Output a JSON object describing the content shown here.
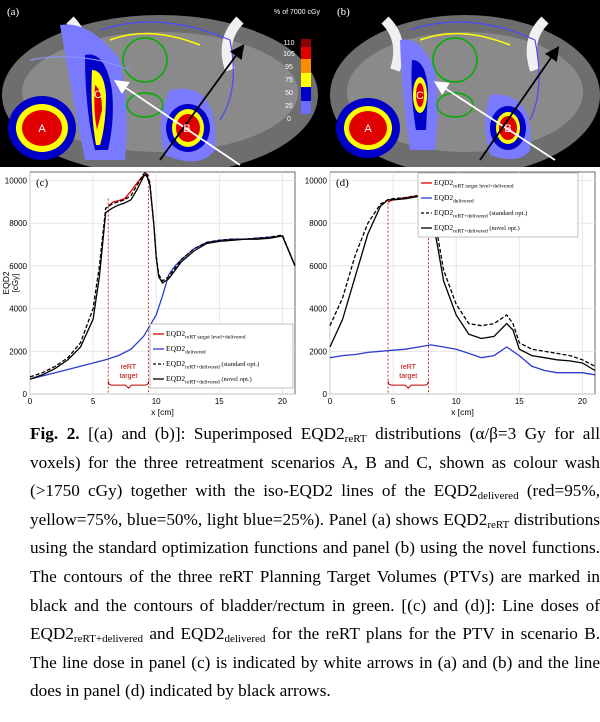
{
  "figure": {
    "ct_a": {
      "panel_label": "(a)",
      "labels": [
        "A",
        "B",
        "C"
      ]
    },
    "ct_b": {
      "panel_label": "(b)",
      "labels": [
        "A",
        "B",
        "C"
      ]
    },
    "colorbar": {
      "title": "% of 7000 cGy",
      "ticks": [
        "110",
        "105",
        "95",
        "75",
        "50",
        "25",
        "0"
      ],
      "colors": [
        "#8b0000",
        "#e00000",
        "#ff8c00",
        "#ffff00",
        "#0000c8",
        "#6b6bff",
        "#a0a0ff"
      ]
    }
  },
  "chart_data": [
    {
      "type": "line",
      "panel_label": "(c)",
      "xlabel": "x [cm]",
      "ylabel": "EQD2",
      "ylabel_unit": "[cGy]",
      "xlim": [
        0,
        21
      ],
      "ylim": [
        0,
        10400
      ],
      "xticks": [
        0,
        5,
        10,
        15,
        20
      ],
      "yticks": [
        0,
        2000,
        4000,
        6000,
        8000,
        10000
      ],
      "target_region": {
        "x_start": 6.2,
        "x_end": 9.4,
        "label_line1": "reRT",
        "label_line2": "target"
      },
      "series": [
        {
          "name_main": "EQD2",
          "name_sub": "reRT target level+delivered",
          "name_tail": "",
          "color": "#e00000",
          "dash": "solid",
          "x": [
            6.2,
            6.6,
            7.0,
            7.5,
            8.0,
            8.5,
            9.0,
            9.4
          ],
          "y": [
            8800,
            9000,
            9050,
            9150,
            9500,
            9900,
            10250,
            10200
          ]
        },
        {
          "name_main": "EQD2",
          "name_sub": "delivered",
          "name_tail": "",
          "color": "#2a3bd1",
          "dash": "solid",
          "x": [
            0,
            1,
            2,
            3,
            4,
            5,
            6,
            7,
            8,
            9,
            10,
            10.5,
            11,
            11.5,
            12,
            13,
            14,
            15,
            16,
            17,
            18,
            19,
            20,
            21
          ],
          "y": [
            700,
            850,
            1000,
            1150,
            1300,
            1450,
            1600,
            1800,
            2100,
            2700,
            3700,
            4600,
            5600,
            6000,
            6300,
            6800,
            7100,
            7200,
            7250,
            7250,
            7300,
            7350,
            7400,
            6000
          ]
        },
        {
          "name_main": "EQD2",
          "name_sub": "reRT+delivered",
          "name_tail": "(standard opt.)",
          "color": "#000000",
          "dash": "dashed",
          "x": [
            0,
            1,
            2,
            3,
            4,
            5,
            5.5,
            6,
            6.5,
            7,
            7.5,
            8,
            8.5,
            9,
            9.2,
            9.5,
            9.8,
            10,
            10.2,
            10.5,
            11,
            11.5,
            12,
            13,
            14,
            15,
            16,
            17,
            18,
            19,
            20,
            21
          ],
          "y": [
            800,
            1000,
            1300,
            1700,
            2400,
            4000,
            6000,
            8700,
            8900,
            9000,
            9100,
            9300,
            9800,
            10300,
            10400,
            9900,
            8000,
            6500,
            5600,
            5300,
            5500,
            5900,
            6300,
            6800,
            7100,
            7200,
            7250,
            7250,
            7300,
            7350,
            7450,
            6000
          ]
        },
        {
          "name_main": "EQD2",
          "name_sub": "reRT+delivered",
          "name_tail": "(novel opt.)",
          "color": "#000000",
          "dash": "solid",
          "x": [
            0,
            1,
            2,
            3,
            4,
            5,
            5.5,
            6,
            6.5,
            7,
            7.5,
            8,
            8.5,
            9,
            9.2,
            9.5,
            9.8,
            10,
            10.2,
            10.5,
            11,
            11.5,
            12,
            13,
            14,
            15,
            16,
            17,
            18,
            19,
            20,
            21
          ],
          "y": [
            700,
            900,
            1200,
            1600,
            2200,
            3500,
            5500,
            8500,
            8700,
            8850,
            8950,
            9100,
            9600,
            10200,
            10300,
            9800,
            8000,
            6400,
            5500,
            5200,
            5400,
            5800,
            6200,
            6700,
            7050,
            7150,
            7200,
            7250,
            7250,
            7300,
            7400,
            6000
          ]
        }
      ]
    },
    {
      "type": "line",
      "panel_label": "(d)",
      "xlabel": "x [cm]",
      "ylabel": "",
      "xlim": [
        0,
        21
      ],
      "ylim": [
        0,
        10400
      ],
      "xticks": [
        0,
        5,
        10,
        15,
        20
      ],
      "yticks": [
        0,
        2000,
        4000,
        6000,
        8000,
        10000
      ],
      "target_region": {
        "x_start": 4.6,
        "x_end": 7.8,
        "label_line1": "reRT",
        "label_line2": "target"
      },
      "series": [
        {
          "name_main": "EQD2",
          "name_sub": "reRT target level+delivered",
          "name_tail": "",
          "color": "#e00000",
          "dash": "solid",
          "x": [
            4.6,
            5.0,
            5.5,
            6.0,
            6.5,
            7.0,
            7.5,
            7.8
          ],
          "y": [
            9000,
            9100,
            9150,
            9200,
            9250,
            9300,
            9250,
            9150
          ]
        },
        {
          "name_main": "EQD2",
          "name_sub": "delivered",
          "name_tail": "",
          "color": "#2a3bd1",
          "dash": "solid",
          "x": [
            0,
            1,
            2,
            3,
            4,
            5,
            6,
            7,
            8,
            9,
            10,
            11,
            12,
            13,
            14,
            15,
            16,
            17,
            18,
            19,
            20,
            21
          ],
          "y": [
            1700,
            1800,
            1850,
            1950,
            2000,
            2050,
            2100,
            2200,
            2300,
            2200,
            2100,
            1900,
            1700,
            1800,
            2200,
            1800,
            1300,
            1100,
            1000,
            1000,
            1000,
            900
          ]
        },
        {
          "name_main": "EQD2",
          "name_sub": "reRT+delivered",
          "name_tail": "(standard opt.)",
          "color": "#000000",
          "dash": "dashed",
          "x": [
            0,
            1,
            2,
            3,
            4,
            4.6,
            5,
            6,
            7,
            7.5,
            8,
            8.5,
            9,
            10,
            11,
            12,
            13,
            14,
            14.5,
            15,
            16,
            17,
            18,
            19,
            20,
            21
          ],
          "y": [
            3200,
            4500,
            6500,
            8000,
            8900,
            9100,
            9150,
            9200,
            9300,
            9300,
            8800,
            7500,
            5800,
            4200,
            3300,
            3200,
            3300,
            3700,
            3300,
            2400,
            2100,
            2000,
            1900,
            1800,
            1600,
            1300
          ]
        },
        {
          "name_main": "EQD2",
          "name_sub": "reRT+delivered",
          "name_tail": "(novel opt.)",
          "color": "#000000",
          "dash": "solid",
          "x": [
            0,
            1,
            2,
            3,
            4,
            4.6,
            5,
            6,
            7,
            7.5,
            8,
            8.5,
            9,
            10,
            11,
            12,
            13,
            14,
            14.5,
            15,
            16,
            17,
            18,
            19,
            20,
            21
          ],
          "y": [
            2200,
            3500,
            5500,
            7500,
            8800,
            9100,
            9100,
            9150,
            9250,
            9200,
            8500,
            7000,
            5300,
            3700,
            2800,
            2600,
            2700,
            3300,
            3000,
            2100,
            1800,
            1700,
            1600,
            1550,
            1450,
            1100
          ]
        }
      ]
    }
  ],
  "caption": {
    "label": "Fig. 2.",
    "t1": " [(a) and (b)]: Superimposed EQD2",
    "s1": "reRT",
    "t2": " distributions (α/β=3 Gy for all voxels) for the three retreatment scenarios A, B and C, shown as colour wash (>1750 cGy) together with the iso-EQD2 lines of the EQD2",
    "s2": "delivered",
    "t3": " (red=95%, yellow=75%, blue=50%, light blue=25%). Panel (a) shows EQD2",
    "s3": "reRT",
    "t4": " distributions using the standard optimization functions and panel (b) using the novel functions. The contours of the three reRT Planning Target Volumes (PTVs) are marked in black and the contours of bladder/rectum in green. [(c) and (d)]: Line doses of EQD2",
    "s4": "reRT+delivered",
    "t5": " and EQD2",
    "s5": "delivered",
    "t6": " for the reRT plans for the PTV in scenario B. The line dose in panel (c) is indicated by white arrows in (a) and (b) and the line does in panel (d) indicated by black arrows."
  }
}
